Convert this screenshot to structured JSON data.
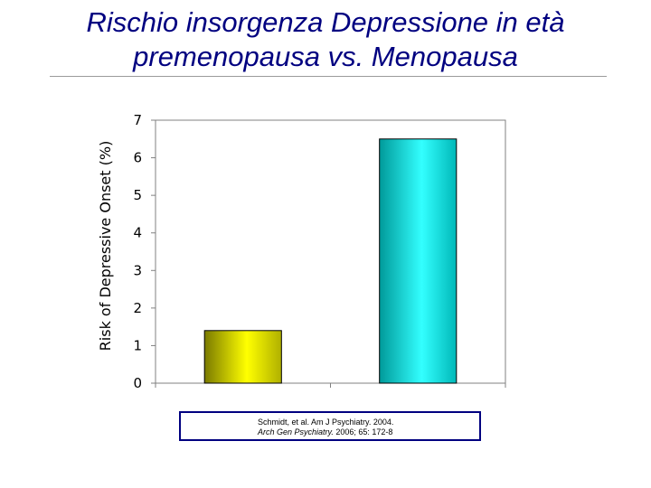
{
  "slide": {
    "title_line1": "Rischio insorgenza Depressione in età",
    "title_line2": "premenopausa vs. Menopausa",
    "title_color": "#000080"
  },
  "chart_data": {
    "type": "bar",
    "categories": [
      "",
      ""
    ],
    "values": [
      1.4,
      6.5
    ],
    "bar_colors": [
      "#ffff00",
      "#00e0e0"
    ],
    "title": "",
    "xlabel": "",
    "ylabel": "Risk of Depressive Onset (%)",
    "ylim": [
      0,
      7
    ],
    "yticks": [
      "0",
      "1",
      "2",
      "3",
      "4",
      "5",
      "6",
      "7"
    ],
    "grid": false,
    "legend": "none"
  },
  "citation": {
    "line1": "Schmidt, et al. Am J Psychiatry. 2004.",
    "line2_journal": "Arch Gen Psychiatry.",
    "line2_rest": " 2006; 65: 172-8"
  }
}
